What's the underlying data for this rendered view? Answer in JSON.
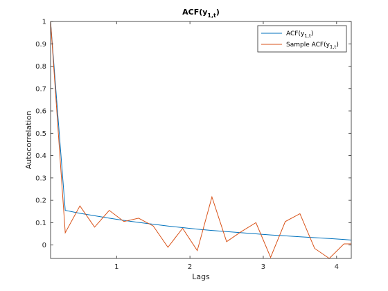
{
  "chart_data": {
    "type": "line",
    "title": "ACF(y1,t)",
    "xlabel": "Lags",
    "ylabel": "Autocorrelation",
    "xlim": [
      0.1,
      4.2
    ],
    "ylim": [
      -0.06,
      1.0
    ],
    "xticks": [
      1,
      2,
      3,
      4
    ],
    "yticks": [
      0,
      0.1,
      0.2,
      0.3,
      0.4,
      0.5,
      0.6,
      0.7,
      0.8,
      0.9,
      1
    ],
    "grid": false,
    "legend_location": "top-right",
    "series": [
      {
        "name": "ACF(y1,t)",
        "color": "#0072BD",
        "x": [
          0.1,
          0.3,
          0.5,
          0.7,
          0.9,
          1.1,
          1.3,
          1.5,
          1.7,
          1.9,
          2.1,
          2.3,
          2.5,
          2.7,
          2.9,
          3.1,
          3.3,
          3.5,
          3.7,
          3.9,
          4.1,
          4.2
        ],
        "y": [
          1.0,
          0.155,
          0.142,
          0.131,
          0.12,
          0.11,
          0.101,
          0.093,
          0.085,
          0.078,
          0.071,
          0.065,
          0.06,
          0.055,
          0.05,
          0.045,
          0.041,
          0.037,
          0.033,
          0.029,
          0.025,
          0.022
        ]
      },
      {
        "name": "Sample ACF(y1,t)",
        "color": "#D95319",
        "x": [
          0.1,
          0.3,
          0.5,
          0.7,
          0.9,
          1.1,
          1.3,
          1.5,
          1.7,
          1.9,
          2.1,
          2.3,
          2.5,
          2.7,
          2.9,
          3.1,
          3.3,
          3.5,
          3.7,
          3.9,
          4.1,
          4.2
        ],
        "y": [
          1.0,
          0.055,
          0.175,
          0.08,
          0.155,
          0.105,
          0.12,
          0.085,
          -0.01,
          0.075,
          -0.025,
          0.215,
          0.015,
          0.06,
          0.1,
          -0.055,
          0.105,
          0.14,
          -0.015,
          -0.06,
          0.005,
          0.005
        ]
      }
    ]
  }
}
